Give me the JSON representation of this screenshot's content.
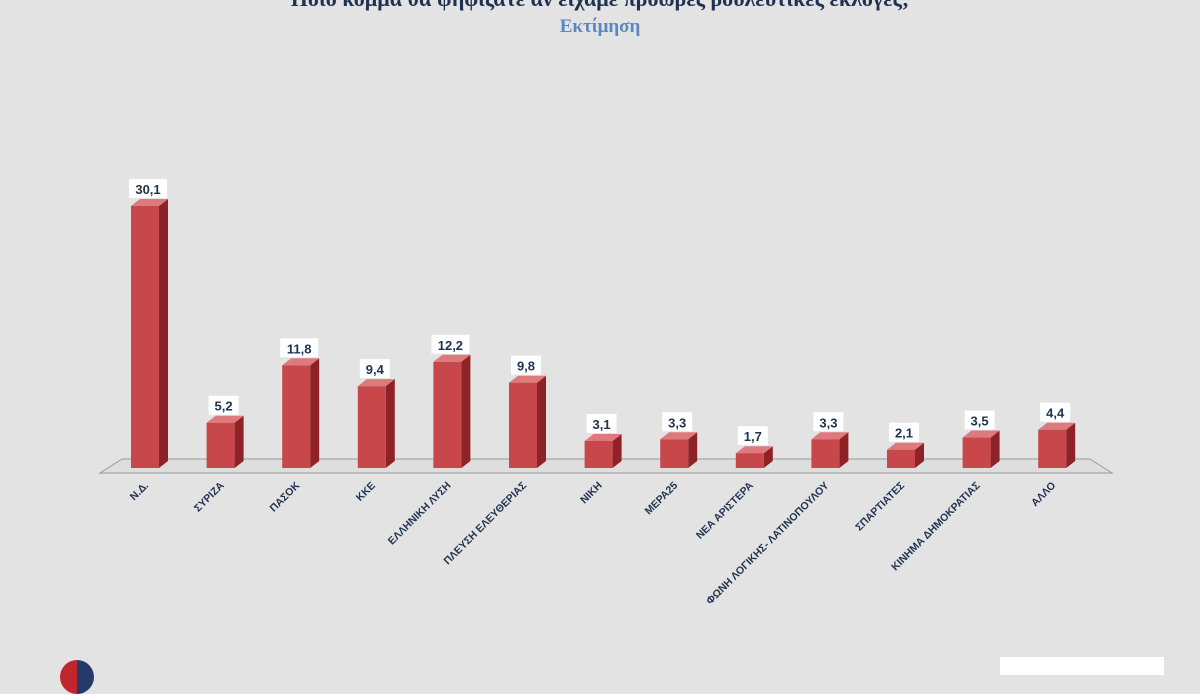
{
  "chart_data": {
    "type": "bar",
    "title": "Ποιο κόμμα θα ψηφίζατε αν είχαμε πρόωρες βουλευτικές εκλογές;",
    "subtitle": "Εκτίμηση",
    "categories": [
      "Ν.Δ.",
      "ΣΥΡΙΖΑ",
      "ΠΑΣΟΚ",
      "ΚΚΕ",
      "ΕΛΛΗΝΙΚΗ ΛΥΣΗ",
      "ΠΛΕΥΣΗ ΕΛΕΥΘΕΡΙΑΣ",
      "ΝΙΚΗ",
      "ΜΕΡΑ25",
      "ΝΕΑ ΑΡΙΣΤΕΡΑ",
      "ΦΩΝΗ ΛΟΓΙΚΗΣ- ΛΑΤΙΝΟΠΟΥΛΟΥ",
      "ΣΠΑΡΤΙΑΤΕΣ",
      "ΚΙΝΗΜΑ ΔΗΜΟΚΡΑΤΙΑΣ",
      "ΑΛΛΟ"
    ],
    "values": [
      30.1,
      5.2,
      11.8,
      9.4,
      12.2,
      9.8,
      3.1,
      3.3,
      1.7,
      3.3,
      2.1,
      3.5,
      4.4
    ],
    "value_labels": [
      "30,1",
      "5,2",
      "11,8",
      "9,4",
      "12,2",
      "9,8",
      "3,1",
      "3,3",
      "1,7",
      "3,3",
      "2,1",
      "3,5",
      "4,4"
    ],
    "xlabel": "",
    "ylabel": "",
    "grid": false,
    "legend": "none",
    "style": "3d",
    "colors": {
      "bar_front": "#c8474b",
      "bar_side": "#8f2226",
      "bar_top": "#de7a7c",
      "label_box": "#ffffff",
      "label_text": "#1f3350",
      "axis_text": "#1f3350",
      "floor": "#dedede",
      "background": "#e3e3e3"
    }
  }
}
